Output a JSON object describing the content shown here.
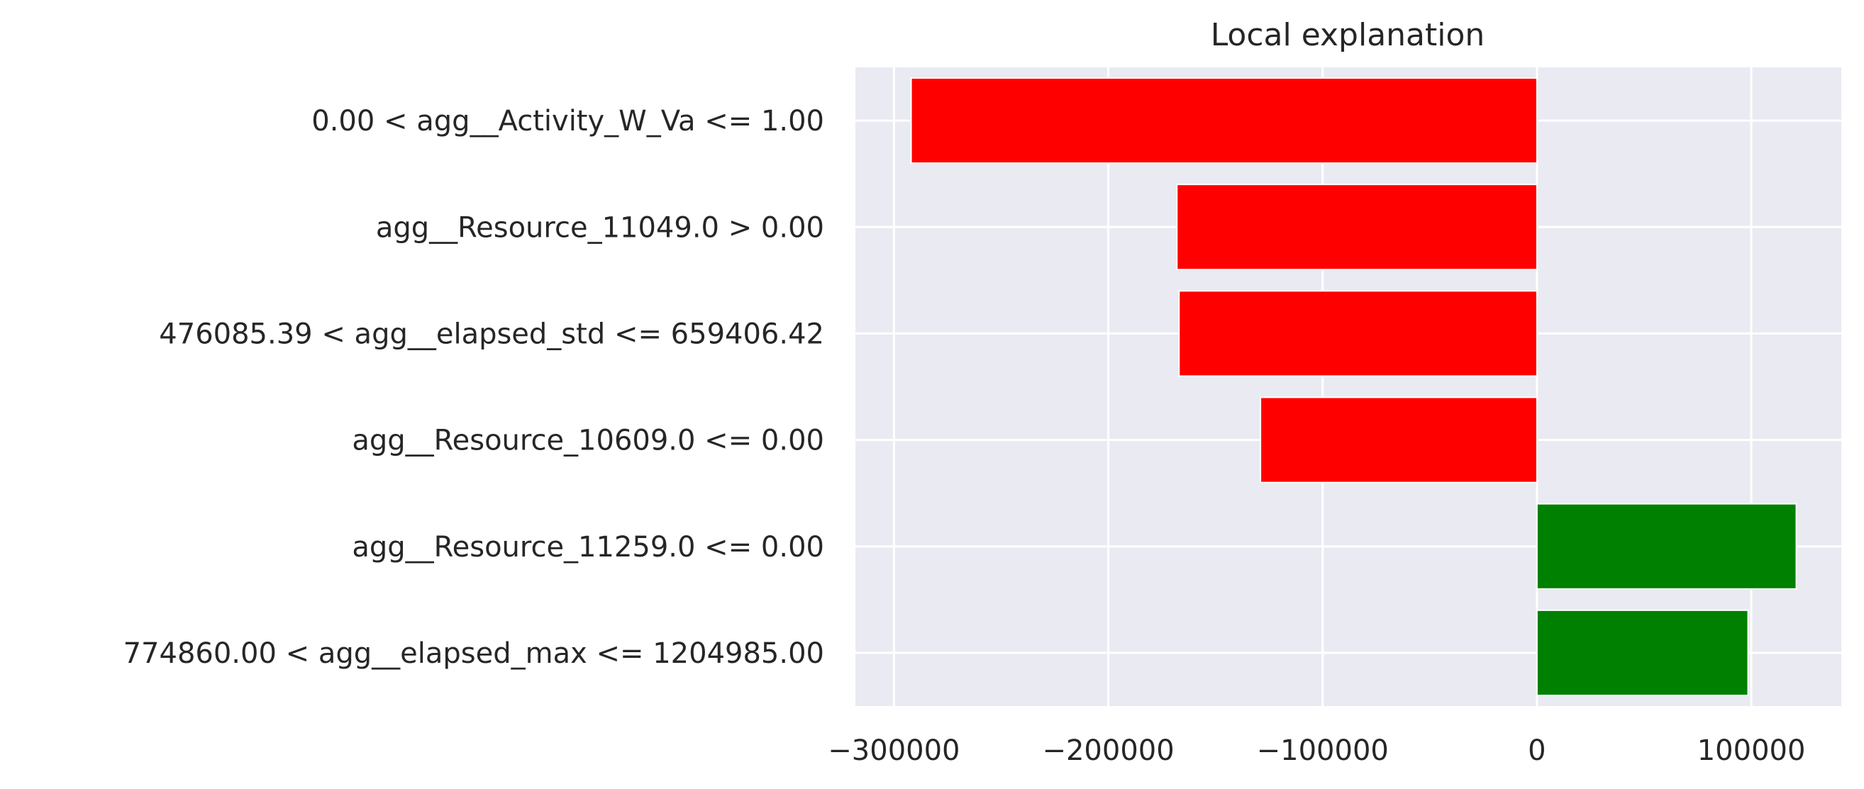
{
  "chart_data": {
    "type": "bar",
    "orientation": "horizontal",
    "title": "Local explanation",
    "xlabel": "",
    "ylabel": "",
    "categories": [
      "0.00 < agg__Activity_W_Va <= 1.00",
      "agg__Resource_11049.0 > 0.00",
      "476085.39 < agg__elapsed_std <= 659406.42",
      "agg__Resource_10609.0 <= 0.00",
      "agg__Resource_11259.0 <= 0.00",
      "774860.00 < agg__elapsed_max <= 1204985.00"
    ],
    "values": [
      -292000,
      -168000,
      -167000,
      -129000,
      121000,
      98500
    ],
    "xlim": [
      -318000,
      142000
    ],
    "xticks": [
      -300000,
      -200000,
      -100000,
      0,
      100000
    ],
    "xtick_labels": [
      "−300000",
      "−200000",
      "−100000",
      "0",
      "100000"
    ],
    "grid": true,
    "colors": {
      "negative": "#ff0000",
      "positive": "#008000",
      "plot_background": "#eaeaf2",
      "grid": "#ffffff",
      "text": "#262626"
    }
  }
}
